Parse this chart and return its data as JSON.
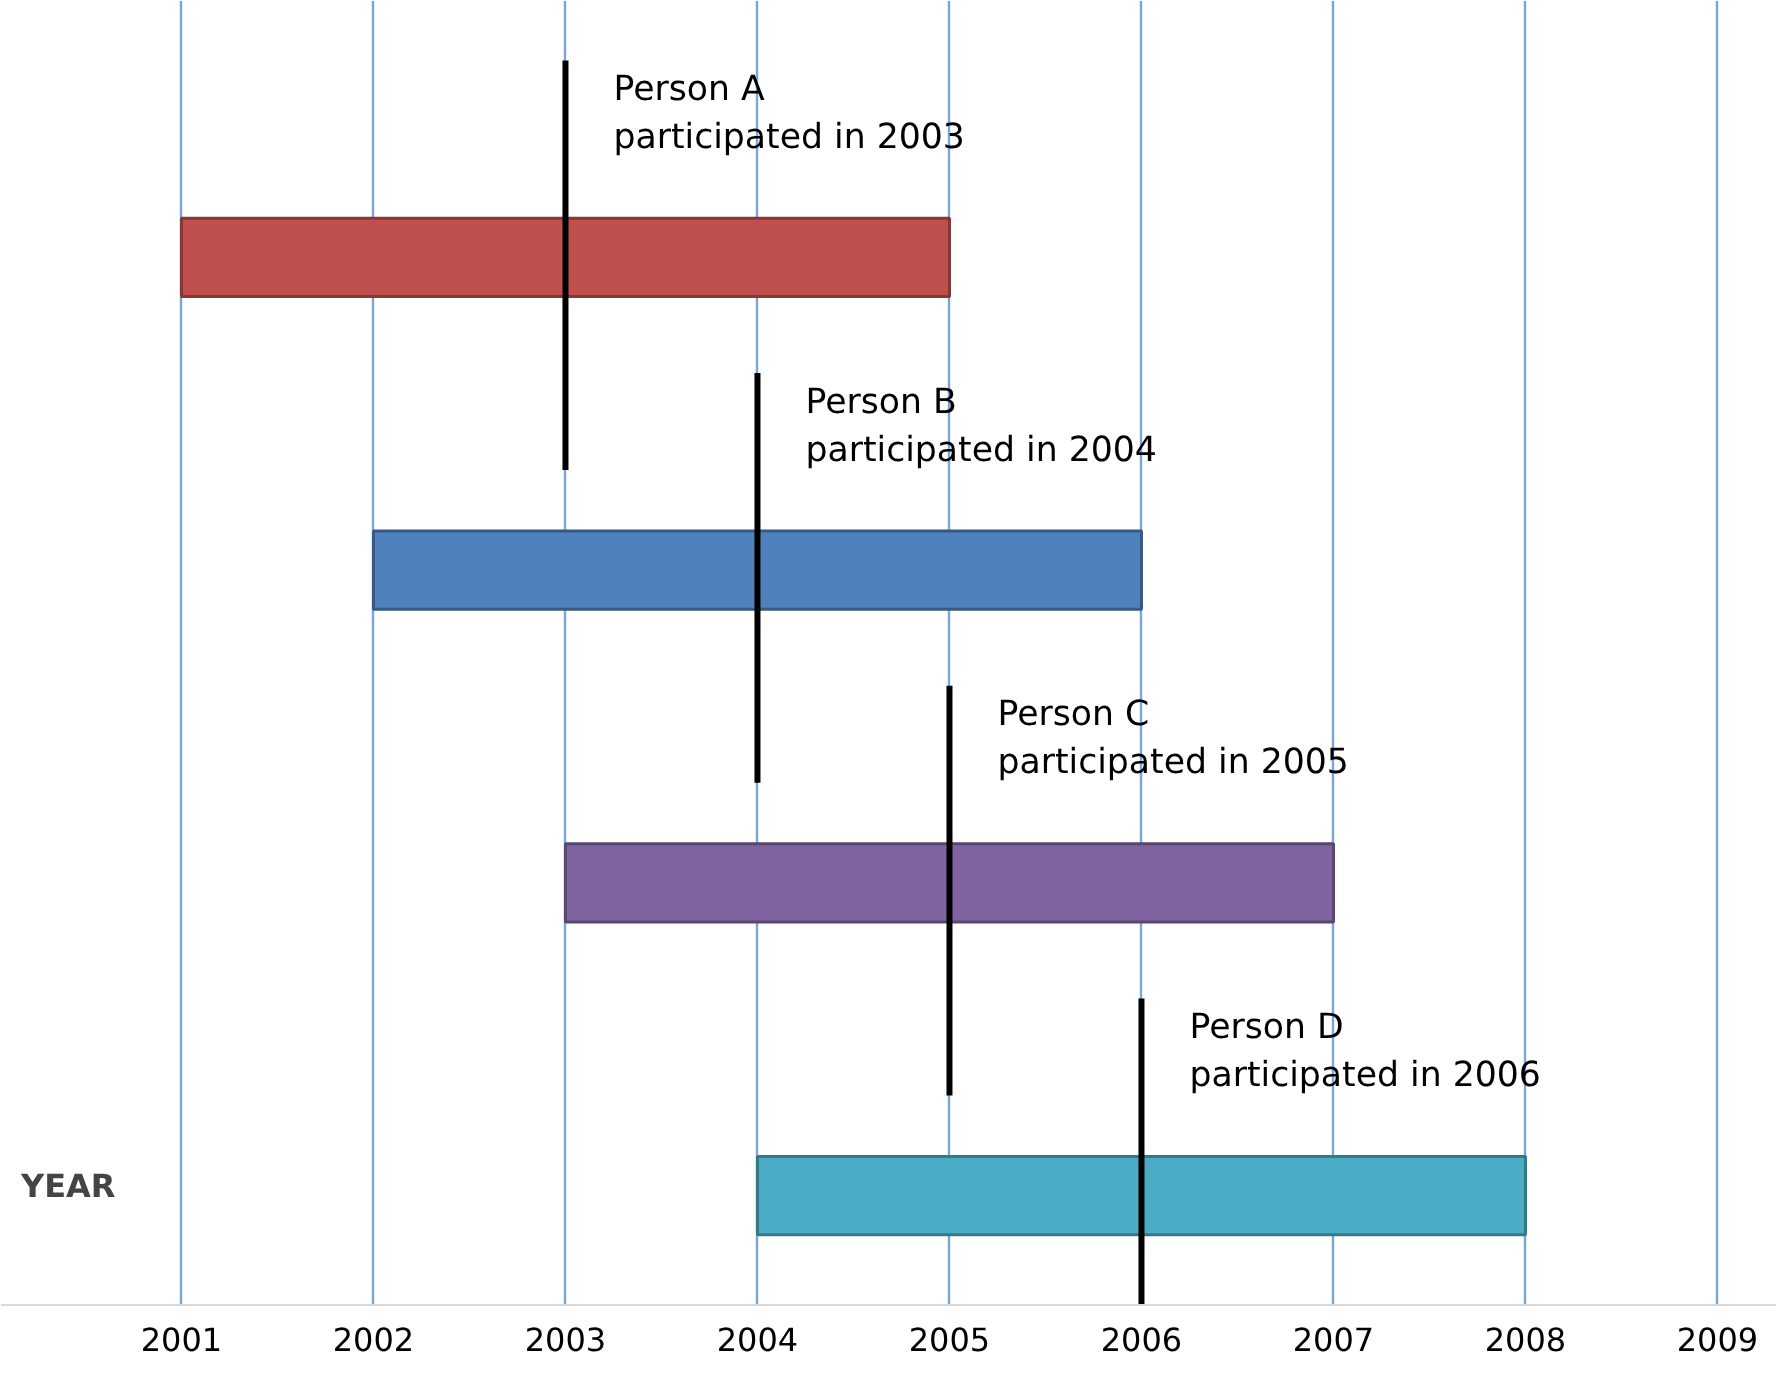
{
  "chart_data": {
    "type": "bar",
    "orientation": "horizontal",
    "xlabel": "YEAR",
    "categories": [
      null,
      null,
      null,
      null
    ],
    "base": [
      2001,
      2002,
      2003,
      2004
    ],
    "values": [
      4,
      4,
      4,
      4
    ],
    "colors": [
      "#c0504d",
      "#4f81bd",
      "#8064a2",
      "#4bacc6"
    ],
    "xlim": [
      2000.06,
      2009.31
    ],
    "xticks": [
      2001,
      2002,
      2003,
      2004,
      2005,
      2006,
      2007,
      2008,
      2009
    ],
    "grid": "x",
    "ref_lines": [
      {
        "axis": "x",
        "value": 2003,
        "label": "Person A\nparticipated in 2003",
        "color": "#000000"
      },
      {
        "axis": "x",
        "value": 2004,
        "label": "Person B\nparticipated in 2004",
        "color": "#000000"
      },
      {
        "axis": "x",
        "value": 2005,
        "label": "Person C\nparticipated in 2005",
        "color": "#000000"
      },
      {
        "axis": "x",
        "value": 2006,
        "label": "Person D\nparticipated in 2006",
        "color": "#000000"
      }
    ]
  }
}
